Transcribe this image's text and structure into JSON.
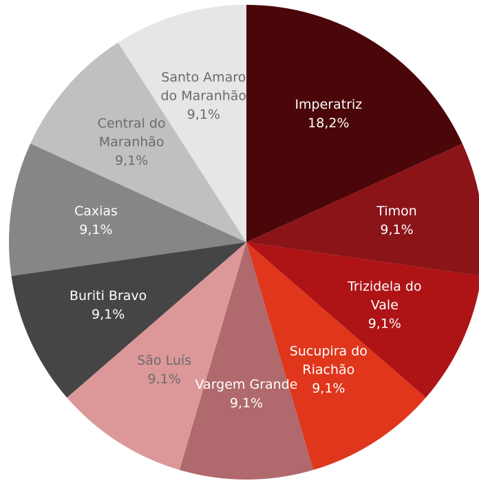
{
  "chart_data": {
    "type": "pie",
    "categories": [
      "Imperatriz",
      "Timon",
      "Trizidela do Vale",
      "Sucupira do Riachão",
      "Vargem Grande",
      "São Luís",
      "Buriti Bravo",
      "Caxias",
      "Central do Maranhão",
      "Santo Amaro do Maranhão"
    ],
    "values": [
      18.2,
      9.1,
      9.1,
      9.1,
      9.1,
      9.1,
      9.1,
      9.1,
      9.1,
      9.1
    ],
    "value_labels": [
      "18,2%",
      "9,1%",
      "9,1%",
      "9,1%",
      "9,1%",
      "9,1%",
      "9,1%",
      "9,1%",
      "9,1%",
      "9,1%"
    ],
    "colors": [
      "#4a0608",
      "#8b1418",
      "#ae1416",
      "#e0361c",
      "#b0696c",
      "#dc9899",
      "#454545",
      "#878587",
      "#c0bfc1",
      "#e6e6e6"
    ]
  }
}
